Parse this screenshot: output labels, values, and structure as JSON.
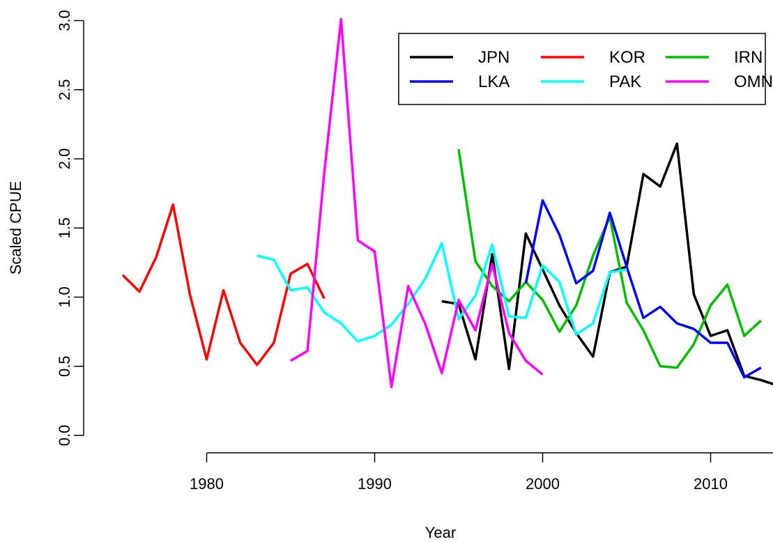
{
  "chart_data": {
    "type": "line",
    "xlabel": "Year",
    "ylabel": "Scaled CPUE",
    "xlim": [
      1974.5,
      2013.5
    ],
    "ylim": [
      0,
      3
    ],
    "x_ticks": [
      1980,
      1990,
      2000,
      2010
    ],
    "y_ticks": [
      0.0,
      0.5,
      1.0,
      1.5,
      2.0,
      2.5,
      3.0
    ],
    "y_tick_labels": [
      "0.0",
      "0.5",
      "1.0",
      "1.5",
      "2.0",
      "2.5",
      "3.0"
    ],
    "legend_position": "top-right",
    "series": [
      {
        "name": "JPN",
        "color": "#000000",
        "x": [
          1994,
          1995,
          1996,
          1997,
          1998,
          1999,
          2000,
          2001,
          2002,
          2003,
          2004,
          2005,
          2006,
          2007,
          2008,
          2009,
          2010,
          2011,
          2012,
          2013,
          2014
        ],
        "y": [
          0.97,
          0.95,
          0.55,
          1.31,
          0.48,
          1.46,
          1.2,
          0.94,
          0.74,
          0.57,
          1.18,
          1.22,
          1.89,
          1.8,
          2.11,
          1.02,
          0.72,
          0.76,
          0.43,
          0.4,
          0.36
        ]
      },
      {
        "name": "KOR",
        "color": "#ff0000",
        "x": [
          1975,
          1976,
          1977,
          1978,
          1979,
          1980,
          1981,
          1982,
          1983,
          1984,
          1985,
          1986,
          1987
        ],
        "y": [
          1.16,
          1.04,
          1.29,
          1.67,
          1.02,
          0.55,
          1.05,
          0.67,
          0.51,
          0.67,
          1.17,
          1.24,
          0.99
        ]
      },
      {
        "name": "IRN",
        "color": "#00c000",
        "x": [
          1995,
          1996,
          1997,
          1998,
          1999,
          2000,
          2001,
          2002,
          2003,
          2004,
          2005,
          2006,
          2007,
          2008,
          2009,
          2010,
          2011,
          2012,
          2013
        ],
        "y": [
          2.07,
          1.26,
          1.08,
          0.97,
          1.11,
          0.98,
          0.75,
          0.94,
          1.3,
          1.58,
          0.96,
          0.76,
          0.5,
          0.49,
          0.66,
          0.94,
          1.09,
          0.72,
          0.83
        ]
      },
      {
        "name": "LKA",
        "color": "#0000ff",
        "x": [
          1999,
          2000,
          2001,
          2002,
          2003,
          2004,
          2005,
          2006,
          2007,
          2008,
          2009,
          2010,
          2011,
          2012,
          2013
        ],
        "y": [
          1.1,
          1.7,
          1.45,
          1.1,
          1.19,
          1.61,
          1.22,
          0.85,
          0.93,
          0.81,
          0.77,
          0.67,
          0.67,
          0.42,
          0.49
        ]
      },
      {
        "name": "PAK",
        "color": "#00ffff",
        "x": [
          1983,
          1984,
          1985,
          1986,
          1987,
          1988,
          1989,
          1990,
          1991,
          1992,
          1993,
          1994,
          1995,
          1996,
          1997,
          1998,
          1999,
          2000,
          2001,
          2002,
          2003,
          2004,
          2005
        ],
        "y": [
          1.3,
          1.27,
          1.05,
          1.07,
          0.89,
          0.81,
          0.68,
          0.72,
          0.8,
          0.95,
          1.13,
          1.39,
          0.84,
          1.01,
          1.38,
          0.86,
          0.85,
          1.23,
          1.11,
          0.73,
          0.81,
          1.18,
          1.2
        ]
      },
      {
        "name": "OMN",
        "color": "#ff00ff",
        "x": [
          1985,
          1986,
          1987,
          1988,
          1989,
          1990,
          1991,
          1992,
          1993,
          1994,
          1995,
          1996,
          1997,
          1998,
          1999,
          2000
        ],
        "y": [
          0.54,
          0.61,
          1.9,
          3.01,
          1.41,
          1.33,
          0.35,
          1.08,
          0.81,
          0.45,
          0.98,
          0.76,
          1.24,
          0.74,
          0.54,
          0.44
        ]
      }
    ]
  }
}
